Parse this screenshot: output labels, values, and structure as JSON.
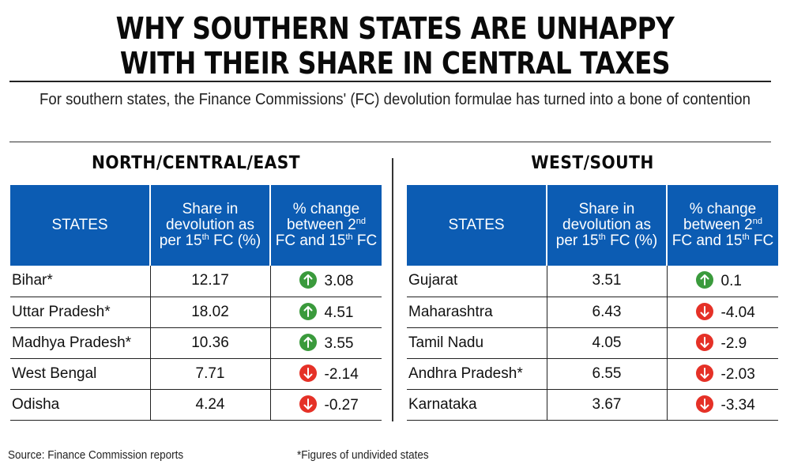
{
  "title_line1": "WHY SOUTHERN STATES ARE UNHAPPY",
  "title_line2": "WITH THEIR SHARE IN CENTRAL TAXES",
  "subtitle": "For southern states, the Finance Commissions' (FC) devolution formulae has turned into a bone of contention",
  "colors": {
    "header_bg": "#0c5cb3",
    "up": "#3a9a3c",
    "down": "#e53127"
  },
  "headers": {
    "states": "STATES",
    "share_a": "Share in",
    "share_b": "devolution as",
    "share_c_pre": "per 15",
    "share_c_sup": "th",
    "share_c_post": " FC (%)",
    "change_a": "% change",
    "change_b_pre": "between 2",
    "change_b_sup": "nd",
    "change_c_pre": "FC and 15",
    "change_c_sup": "th",
    "change_c_post": " FC"
  },
  "chart_data": {
    "type": "table",
    "title": "WHY SOUTHERN STATES ARE UNHAPPY WITH THEIR SHARE IN CENTRAL TAXES",
    "subtitle": "For southern states, the Finance Commissions' (FC) devolution formulae has turned into a bone of contention",
    "columns": [
      "STATES",
      "Share in devolution as per 15th FC (%)",
      "% change between 2nd FC and 15th FC"
    ],
    "groups": [
      {
        "name": "NORTH/CENTRAL/EAST",
        "rows": [
          {
            "state": "Bihar*",
            "share": "12.17",
            "change": "3.08",
            "direction": "up"
          },
          {
            "state": "Uttar Pradesh*",
            "share": "18.02",
            "change": "4.51",
            "direction": "up"
          },
          {
            "state": "Madhya Pradesh*",
            "share": "10.36",
            "change": "3.55",
            "direction": "up"
          },
          {
            "state": "West Bengal",
            "share": "7.71",
            "change": "-2.14",
            "direction": "down"
          },
          {
            "state": "Odisha",
            "share": "4.24",
            "change": "-0.27",
            "direction": "down"
          }
        ]
      },
      {
        "name": "WEST/SOUTH",
        "rows": [
          {
            "state": "Gujarat",
            "share": "3.51",
            "change": "0.1",
            "direction": "up"
          },
          {
            "state": "Maharashtra",
            "share": "6.43",
            "change": "-4.04",
            "direction": "down"
          },
          {
            "state": "Tamil Nadu",
            "share": "4.05",
            "change": "-2.9",
            "direction": "down"
          },
          {
            "state": "Andhra Pradesh*",
            "share": "6.55",
            "change": "-2.03",
            "direction": "down"
          },
          {
            "state": "Karnataka",
            "share": "3.67",
            "change": "-3.34",
            "direction": "down"
          }
        ]
      }
    ]
  },
  "footer": {
    "source": "Source: Finance Commission reports",
    "note": "*Figures of undivided states"
  }
}
